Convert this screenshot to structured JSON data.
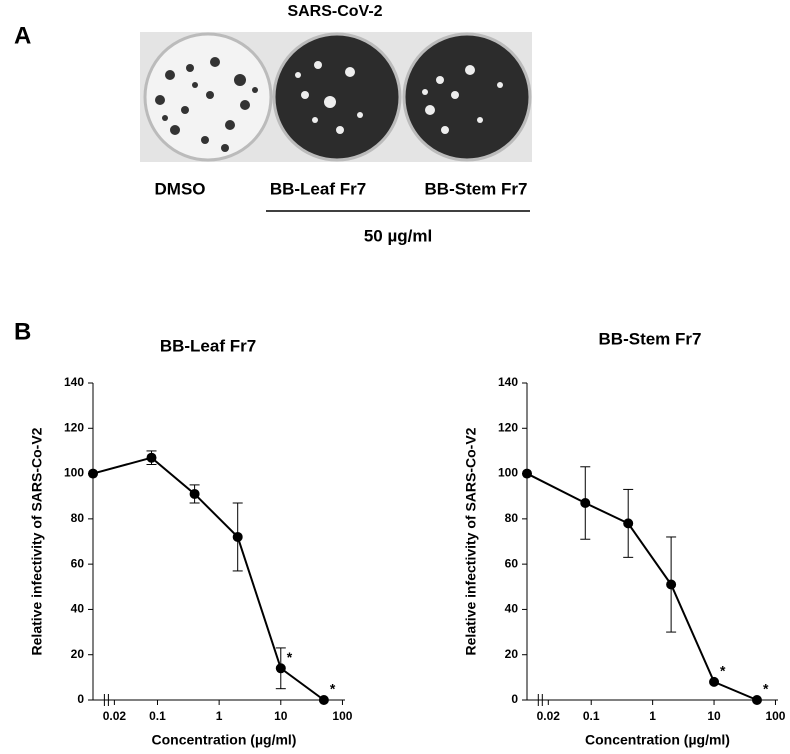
{
  "panel_a": {
    "label": "A",
    "title": "SARS-CoV-2",
    "wells": [
      "DMSO",
      "BB-Leaf Fr7",
      "BB-Stem Fr7"
    ],
    "dose": "50 µg/ml"
  },
  "panel_b": {
    "label": "B"
  },
  "chart_data": [
    {
      "type": "line",
      "title": "BB-Leaf Fr7",
      "x_label": "Concentration (µg/ml)",
      "y_label": "Relative infectivity of SARS-Co-V2",
      "x": [
        0.009,
        0.08,
        0.4,
        2,
        10,
        50
      ],
      "values": [
        100,
        107,
        91,
        72,
        14,
        0
      ],
      "errors": [
        null,
        3,
        4,
        15,
        9,
        null
      ],
      "color": "#000000",
      "xscale": "log",
      "xlim": [
        0.009,
        110
      ],
      "xticks": [
        0.02,
        0.1,
        1,
        10,
        100
      ],
      "ylim": [
        0,
        140
      ],
      "yticks": [
        0,
        20,
        40,
        60,
        80,
        100,
        120,
        140
      ],
      "annotations": [
        {
          "x": 10,
          "y": 14,
          "text": "*"
        },
        {
          "x": 50,
          "y": 0,
          "text": "*"
        }
      ]
    },
    {
      "type": "line",
      "title": "BB-Stem Fr7",
      "x_label": "Concentration (µg/ml)",
      "y_label": "Relative infectivity of SARS-Co-V2",
      "x": [
        0.009,
        0.08,
        0.4,
        2,
        10,
        50
      ],
      "values": [
        100,
        87,
        78,
        51,
        8,
        0
      ],
      "errors": [
        null,
        16,
        15,
        21,
        null,
        null
      ],
      "color": "#000000",
      "xscale": "log",
      "xlim": [
        0.009,
        110
      ],
      "xticks": [
        0.02,
        0.1,
        1,
        10,
        100
      ],
      "ylim": [
        0,
        140
      ],
      "yticks": [
        0,
        20,
        40,
        60,
        80,
        100,
        120,
        140
      ],
      "annotations": [
        {
          "x": 10,
          "y": 8,
          "text": "*"
        },
        {
          "x": 50,
          "y": 0,
          "text": "*"
        }
      ]
    }
  ]
}
